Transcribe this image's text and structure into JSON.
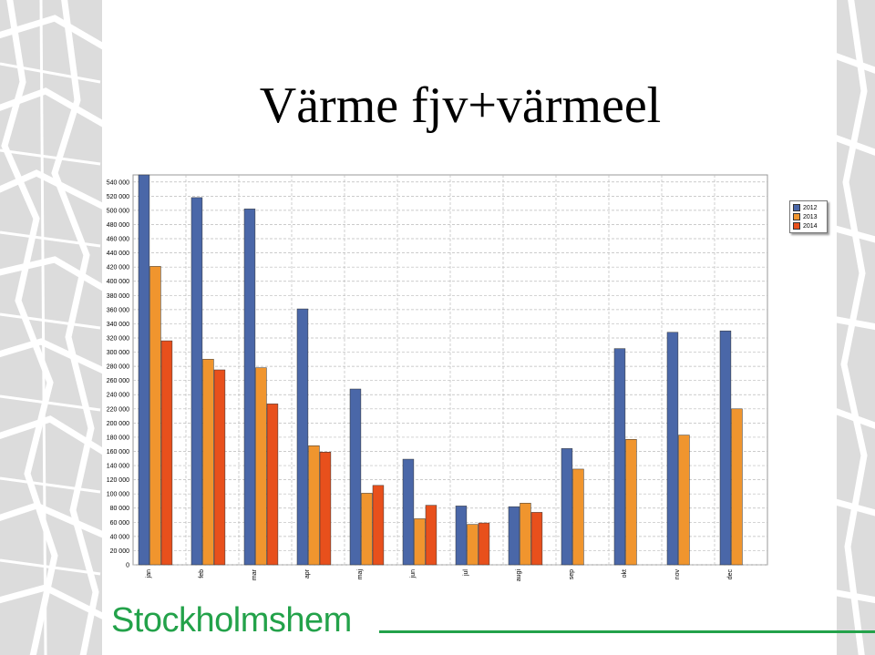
{
  "page": {
    "title": "Värme fjv+värmeel",
    "brand_name": "Stockholmshem",
    "brand_color": "#23a24a"
  },
  "chart_data": {
    "type": "bar",
    "title": "",
    "xlabel": "",
    "ylabel": "",
    "ylim": [
      0,
      550000
    ],
    "ytick_step": 20000,
    "ytick_labels": [
      "0",
      "20 000",
      "40 000",
      "60 000",
      "80 000",
      "100 000",
      "120 000",
      "140 000",
      "160 000",
      "180 000",
      "200 000",
      "220 000",
      "240 000",
      "260 000",
      "280 000",
      "300 000",
      "320 000",
      "340 000",
      "360 000",
      "380 000",
      "400 000",
      "420 000",
      "440 000",
      "460 000",
      "480 000",
      "500 000",
      "520 000",
      "540 000"
    ],
    "grid": true,
    "legend_position": "top-right",
    "categories": [
      "jan",
      "feb",
      "mar",
      "apr",
      "maj",
      "jun",
      "jul",
      "augi",
      "sep",
      "okt",
      "nov",
      "dec"
    ],
    "series": [
      {
        "name": "2012",
        "color": "#4a67a8",
        "values": [
          550000,
          518000,
          502000,
          361000,
          248000,
          149000,
          83000,
          82000,
          164000,
          305000,
          328000,
          330000
        ]
      },
      {
        "name": "2013",
        "color": "#f0952e",
        "values": [
          421000,
          290000,
          278000,
          168000,
          101000,
          65000,
          57000,
          87000,
          135000,
          177000,
          183000,
          220000
        ]
      },
      {
        "name": "2014",
        "color": "#e8501c",
        "values": [
          316000,
          275000,
          227000,
          159000,
          112000,
          84000,
          59000,
          74000,
          null,
          null,
          null,
          null
        ]
      }
    ]
  }
}
